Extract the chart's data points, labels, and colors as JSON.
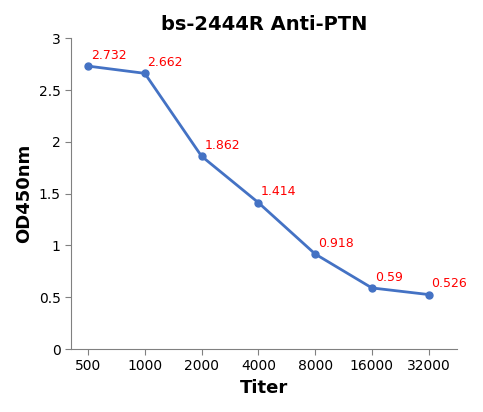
{
  "title": "bs-2444R Anti-PTN",
  "xlabel": "Titer",
  "ylabel": "OD450nm",
  "x_values": [
    0,
    1,
    2,
    3,
    4,
    5,
    6
  ],
  "y_values": [
    2.732,
    2.662,
    1.862,
    1.414,
    0.918,
    0.59,
    0.526
  ],
  "annotations": [
    "2.732",
    "2.662",
    "1.862",
    "1.414",
    "0.918",
    "0.59",
    "0.526"
  ],
  "xtick_labels": [
    "500",
    "1000",
    "2000",
    "4000",
    "8000",
    "16000",
    "32000"
  ],
  "line_color": "#4472C4",
  "marker_color": "#4472C4",
  "annotation_color": "#FF0000",
  "ylim": [
    0,
    3.0
  ],
  "ytick_vals": [
    0,
    0.5,
    1.0,
    1.5,
    2.0,
    2.5,
    3.0
  ],
  "ytick_labels": [
    "0",
    "0.5",
    "1",
    "1.5",
    "2",
    "2.5",
    "3"
  ],
  "title_fontsize": 14,
  "axis_label_fontsize": 13,
  "tick_fontsize": 10,
  "annotation_fontsize": 9,
  "background_color": "#ffffff",
  "ann_dx": [
    0.05,
    0.05,
    0.05,
    0.05,
    0.05,
    0.05,
    0.05
  ],
  "ann_dy": [
    0.04,
    0.04,
    0.04,
    0.04,
    0.04,
    0.04,
    0.04
  ]
}
